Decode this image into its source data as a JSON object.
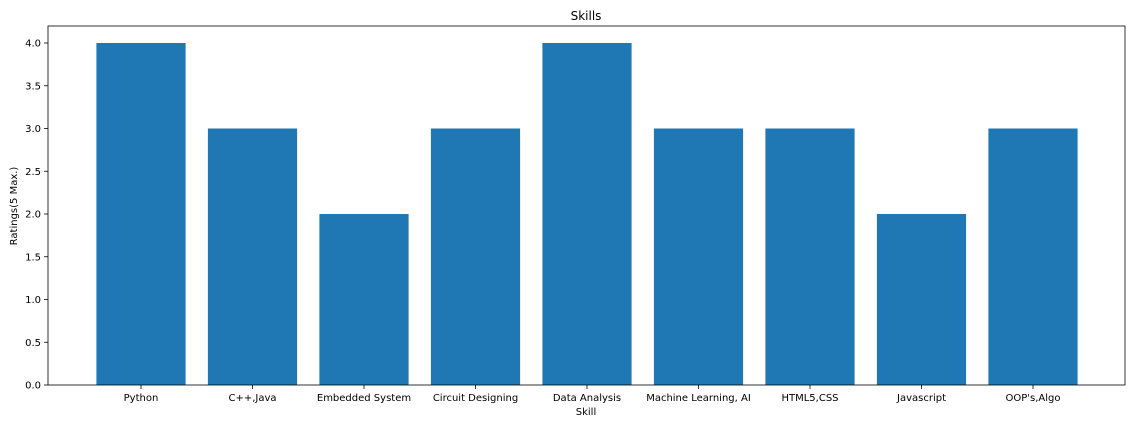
{
  "chart_data": {
    "type": "bar",
    "title": "Skills",
    "xlabel": "Skill",
    "ylabel": "Ratings(5 Max.)",
    "categories": [
      "Python",
      "C++,Java",
      "Embedded System",
      "Circuit Designing",
      "Data Analysis",
      "Machine Learning, AI",
      "HTML5,CSS",
      "Javascript",
      "OOP's,Algo"
    ],
    "values": [
      4,
      3,
      2,
      3,
      4,
      3,
      3,
      2,
      3
    ],
    "ylim": [
      0,
      4.2
    ],
    "yticks": [
      "0.0",
      "0.5",
      "1.0",
      "1.5",
      "2.0",
      "2.5",
      "3.0",
      "3.5",
      "4.0"
    ],
    "grid": false,
    "bar_color": "#1f77b4"
  }
}
